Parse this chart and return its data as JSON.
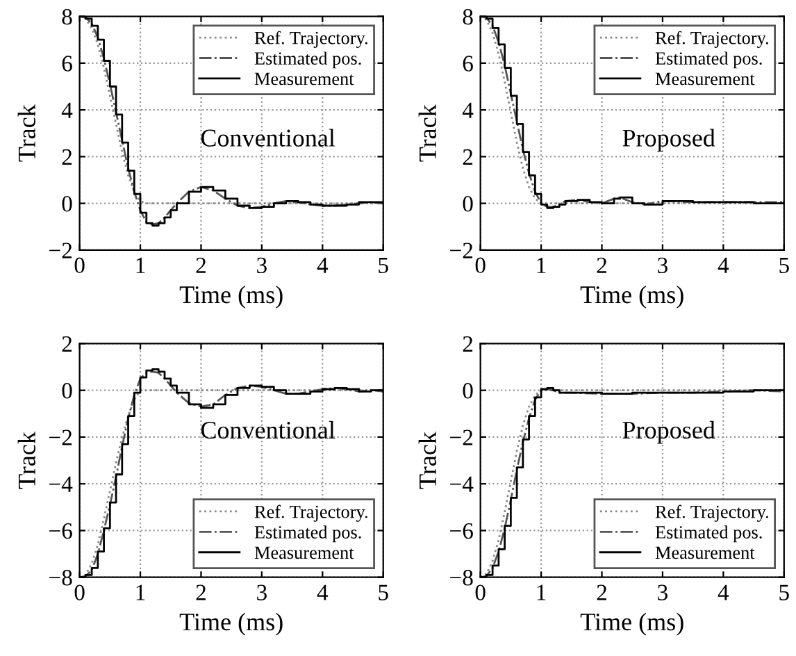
{
  "chart_data": [
    {
      "type": "line",
      "annotations": [
        "Conventional"
      ],
      "xlabel": "Time (ms)",
      "ylabel": "Track",
      "xlim": [
        0,
        5
      ],
      "ylim": [
        -2,
        8
      ],
      "xticks": [
        0,
        1,
        2,
        3,
        4,
        5
      ],
      "yticks": [
        {
          "value": -2,
          "label": "−2"
        },
        0,
        2,
        4,
        6,
        8
      ],
      "grid": true,
      "legend": "top right",
      "series": [
        {
          "name": "Ref. Trajectory.",
          "color": "#888888",
          "line_style": "dotted",
          "x": [
            0,
            0.1,
            0.2,
            0.3,
            0.4,
            0.5,
            0.6,
            0.7,
            0.8,
            0.9,
            1.0,
            1.1,
            1.2,
            5
          ],
          "values": [
            8,
            7.9,
            7.5,
            6.8,
            5.8,
            4.6,
            3.4,
            2.2,
            1.2,
            0.5,
            0.1,
            0,
            0,
            0
          ]
        },
        {
          "name": "Estimated pos.",
          "color": "#555555",
          "line_style": "dashdot",
          "x": [
            0,
            0.1,
            0.2,
            0.3,
            0.4,
            0.5,
            0.6,
            0.7,
            0.8,
            0.9,
            1.0,
            1.1,
            1.2,
            1.3,
            1.4,
            1.5,
            1.6,
            1.8,
            2.0,
            2.2,
            2.4,
            2.6,
            2.8,
            3.0,
            3.2,
            3.4,
            3.6,
            3.8,
            4.0,
            4.2,
            4.4,
            4.6,
            4.8,
            5.0
          ],
          "values": [
            8,
            7.95,
            7.7,
            7.1,
            6.2,
            5.1,
            3.9,
            2.7,
            1.5,
            0.5,
            -0.3,
            -0.8,
            -0.9,
            -0.85,
            -0.6,
            -0.3,
            0.0,
            0.5,
            0.7,
            0.55,
            0.2,
            -0.1,
            -0.2,
            -0.15,
            0,
            0.1,
            0.05,
            -0.05,
            -0.1,
            -0.1,
            -0.05,
            0,
            0.05,
            0
          ]
        },
        {
          "name": "Measurement",
          "color": "#000000",
          "type": "step",
          "line_style": "solid",
          "x": [
            0,
            0.1,
            0.2,
            0.3,
            0.4,
            0.5,
            0.6,
            0.7,
            0.8,
            0.9,
            1.0,
            1.1,
            1.2,
            1.3,
            1.4,
            1.5,
            1.6,
            1.8,
            2.0,
            2.2,
            2.4,
            2.6,
            2.8,
            3.0,
            3.2,
            3.4,
            3.6,
            3.8,
            4.0,
            4.2,
            4.4,
            4.6,
            4.8,
            5.0
          ],
          "values": [
            8,
            7.9,
            7.6,
            7.0,
            6.1,
            5.0,
            3.8,
            2.6,
            1.4,
            0.4,
            -0.4,
            -0.85,
            -0.95,
            -0.85,
            -0.6,
            -0.3,
            0.0,
            0.5,
            0.7,
            0.55,
            0.2,
            -0.1,
            -0.2,
            -0.15,
            0,
            0.1,
            0.05,
            -0.05,
            -0.1,
            -0.1,
            -0.05,
            0.05,
            0.05,
            0
          ]
        }
      ]
    },
    {
      "type": "line",
      "annotations": [
        "Proposed"
      ],
      "xlabel": "Time (ms)",
      "ylabel": "Track",
      "xlim": [
        0,
        5
      ],
      "ylim": [
        -2,
        8
      ],
      "xticks": [
        0,
        1,
        2,
        3,
        4,
        5
      ],
      "yticks": [
        {
          "value": -2,
          "label": "−2"
        },
        0,
        2,
        4,
        6,
        8
      ],
      "grid": true,
      "legend": "top right",
      "series": [
        {
          "name": "Ref. Trajectory.",
          "color": "#888888",
          "line_style": "dotted",
          "x": [
            0,
            0.1,
            0.2,
            0.3,
            0.4,
            0.5,
            0.6,
            0.7,
            0.8,
            0.9,
            1.0,
            1.1,
            5
          ],
          "values": [
            8,
            7.85,
            7.3,
            6.4,
            5.2,
            3.9,
            2.6,
            1.5,
            0.7,
            0.2,
            0,
            0,
            0
          ]
        },
        {
          "name": "Estimated pos.",
          "color": "#555555",
          "line_style": "dashdot",
          "x": [
            0,
            0.1,
            0.2,
            0.3,
            0.4,
            0.5,
            0.6,
            0.7,
            0.8,
            0.9,
            1.0,
            1.1,
            1.2,
            1.3,
            1.4,
            1.6,
            1.8,
            2.0,
            2.2,
            2.3,
            2.5,
            2.7,
            3.0,
            3.5,
            4.0,
            4.5,
            5.0
          ],
          "values": [
            8,
            7.95,
            7.6,
            6.9,
            5.9,
            4.7,
            3.5,
            2.3,
            1.3,
            0.5,
            0.0,
            -0.15,
            -0.15,
            -0.05,
            0.1,
            0.15,
            0.05,
            0.0,
            0.2,
            0.25,
            0.05,
            -0.05,
            0.1,
            0.05,
            0.05,
            0.05,
            0.05
          ]
        },
        {
          "name": "Measurement",
          "color": "#000000",
          "type": "step",
          "line_style": "solid",
          "x": [
            0,
            0.1,
            0.2,
            0.3,
            0.4,
            0.5,
            0.6,
            0.7,
            0.8,
            0.9,
            1.0,
            1.1,
            1.2,
            1.3,
            1.4,
            1.6,
            1.8,
            2.0,
            2.2,
            2.3,
            2.5,
            2.7,
            3.0,
            3.5,
            4.0,
            4.5,
            5.0
          ],
          "values": [
            8,
            7.9,
            7.5,
            6.8,
            5.8,
            4.6,
            3.4,
            2.2,
            1.2,
            0.4,
            -0.05,
            -0.2,
            -0.15,
            -0.05,
            0.1,
            0.15,
            0.05,
            0.0,
            0.2,
            0.25,
            0.0,
            -0.05,
            0.1,
            0.05,
            0.05,
            0.0,
            0.05
          ]
        }
      ]
    },
    {
      "type": "line",
      "annotations": [
        "Conventional"
      ],
      "xlabel": "Time (ms)",
      "ylabel": "Track",
      "xlim": [
        0,
        5
      ],
      "ylim": [
        -8,
        2
      ],
      "xticks": [
        0,
        1,
        2,
        3,
        4,
        5
      ],
      "yticks": [
        {
          "value": -8,
          "label": "−8"
        },
        {
          "value": -6,
          "label": "−6"
        },
        {
          "value": -4,
          "label": "−4"
        },
        {
          "value": -2,
          "label": "−2"
        },
        0,
        2
      ],
      "grid": true,
      "legend": "bottom right",
      "series": [
        {
          "name": "Ref. Trajectory.",
          "color": "#888888",
          "line_style": "dotted",
          "x": [
            0,
            0.1,
            0.2,
            0.3,
            0.4,
            0.5,
            0.6,
            0.7,
            0.8,
            0.9,
            1.0,
            1.1,
            1.2,
            5
          ],
          "values": [
            -8,
            -7.9,
            -7.4,
            -6.6,
            -5.5,
            -4.3,
            -3.1,
            -2.0,
            -1.1,
            -0.4,
            0,
            0,
            0,
            0
          ]
        },
        {
          "name": "Estimated pos.",
          "color": "#555555",
          "line_style": "dashdot",
          "x": [
            0,
            0.1,
            0.2,
            0.3,
            0.4,
            0.5,
            0.6,
            0.7,
            0.8,
            0.9,
            1.0,
            1.1,
            1.2,
            1.3,
            1.4,
            1.5,
            1.6,
            1.8,
            2.0,
            2.2,
            2.4,
            2.6,
            2.8,
            3.0,
            3.2,
            3.4,
            3.6,
            3.8,
            4.0,
            4.2,
            4.4,
            4.6,
            4.8,
            5.0
          ],
          "values": [
            -8,
            -7.95,
            -7.7,
            -7.0,
            -6.0,
            -4.9,
            -3.7,
            -2.4,
            -1.2,
            -0.2,
            0.5,
            0.75,
            0.8,
            0.75,
            0.5,
            0.2,
            -0.1,
            -0.55,
            -0.7,
            -0.6,
            -0.2,
            0.1,
            0.2,
            0.15,
            0,
            -0.15,
            -0.15,
            -0.05,
            0.05,
            0.1,
            0.05,
            -0.05,
            0,
            -0.05
          ]
        },
        {
          "name": "Measurement",
          "color": "#000000",
          "type": "step",
          "line_style": "solid",
          "x": [
            0,
            0.1,
            0.2,
            0.3,
            0.4,
            0.5,
            0.6,
            0.7,
            0.8,
            0.9,
            1.0,
            1.1,
            1.2,
            1.3,
            1.4,
            1.5,
            1.6,
            1.8,
            2.0,
            2.2,
            2.4,
            2.6,
            2.8,
            3.0,
            3.2,
            3.4,
            3.6,
            3.8,
            4.0,
            4.2,
            4.4,
            4.6,
            4.8,
            5.0
          ],
          "values": [
            -8,
            -7.9,
            -7.6,
            -6.9,
            -5.9,
            -4.8,
            -3.6,
            -2.3,
            -1.1,
            -0.1,
            0.55,
            0.85,
            0.9,
            0.8,
            0.5,
            0.2,
            -0.1,
            -0.6,
            -0.75,
            -0.6,
            -0.2,
            0.1,
            0.2,
            0.15,
            0,
            -0.15,
            -0.15,
            -0.05,
            0.05,
            0.1,
            0.05,
            -0.05,
            0,
            -0.05
          ]
        }
      ]
    },
    {
      "type": "line",
      "annotations": [
        "Proposed"
      ],
      "xlabel": "Time (ms)",
      "ylabel": "Track",
      "xlim": [
        0,
        5
      ],
      "ylim": [
        -8,
        2
      ],
      "xticks": [
        0,
        1,
        2,
        3,
        4,
        5
      ],
      "yticks": [
        {
          "value": -8,
          "label": "−8"
        },
        {
          "value": -6,
          "label": "−6"
        },
        {
          "value": -4,
          "label": "−4"
        },
        {
          "value": -2,
          "label": "−2"
        },
        0,
        2
      ],
      "grid": true,
      "legend": "bottom right",
      "series": [
        {
          "name": "Ref. Trajectory.",
          "color": "#888888",
          "line_style": "dotted",
          "x": [
            0,
            0.1,
            0.2,
            0.3,
            0.4,
            0.5,
            0.6,
            0.7,
            0.8,
            0.9,
            1.0,
            1.1,
            5
          ],
          "values": [
            -8,
            -7.85,
            -7.3,
            -6.4,
            -5.2,
            -3.9,
            -2.6,
            -1.5,
            -0.7,
            -0.2,
            0,
            0,
            0
          ]
        },
        {
          "name": "Estimated pos.",
          "color": "#555555",
          "line_style": "dashdot",
          "x": [
            0,
            0.1,
            0.2,
            0.3,
            0.4,
            0.5,
            0.6,
            0.7,
            0.8,
            0.9,
            1.0,
            1.1,
            1.2,
            1.3,
            1.5,
            2.0,
            2.5,
            3.0,
            3.5,
            4.0,
            4.5,
            5.0
          ],
          "values": [
            -8,
            -7.95,
            -7.6,
            -6.9,
            -5.9,
            -4.7,
            -3.4,
            -2.2,
            -1.2,
            -0.4,
            0,
            0.05,
            0.0,
            -0.1,
            -0.1,
            -0.15,
            -0.15,
            -0.1,
            -0.1,
            -0.05,
            0,
            -0.05
          ]
        },
        {
          "name": "Measurement",
          "color": "#000000",
          "type": "step",
          "line_style": "solid",
          "x": [
            0,
            0.1,
            0.2,
            0.3,
            0.4,
            0.5,
            0.6,
            0.7,
            0.8,
            0.9,
            1.0,
            1.1,
            1.2,
            1.3,
            1.5,
            2.0,
            2.5,
            3.0,
            3.5,
            4.0,
            4.5,
            5.0
          ],
          "values": [
            -8,
            -7.9,
            -7.5,
            -6.8,
            -5.8,
            -4.6,
            -3.3,
            -2.1,
            -1.1,
            -0.3,
            0.05,
            0.1,
            0.0,
            -0.1,
            -0.1,
            -0.15,
            -0.1,
            -0.1,
            -0.1,
            -0.05,
            0,
            -0.05
          ]
        }
      ]
    }
  ]
}
